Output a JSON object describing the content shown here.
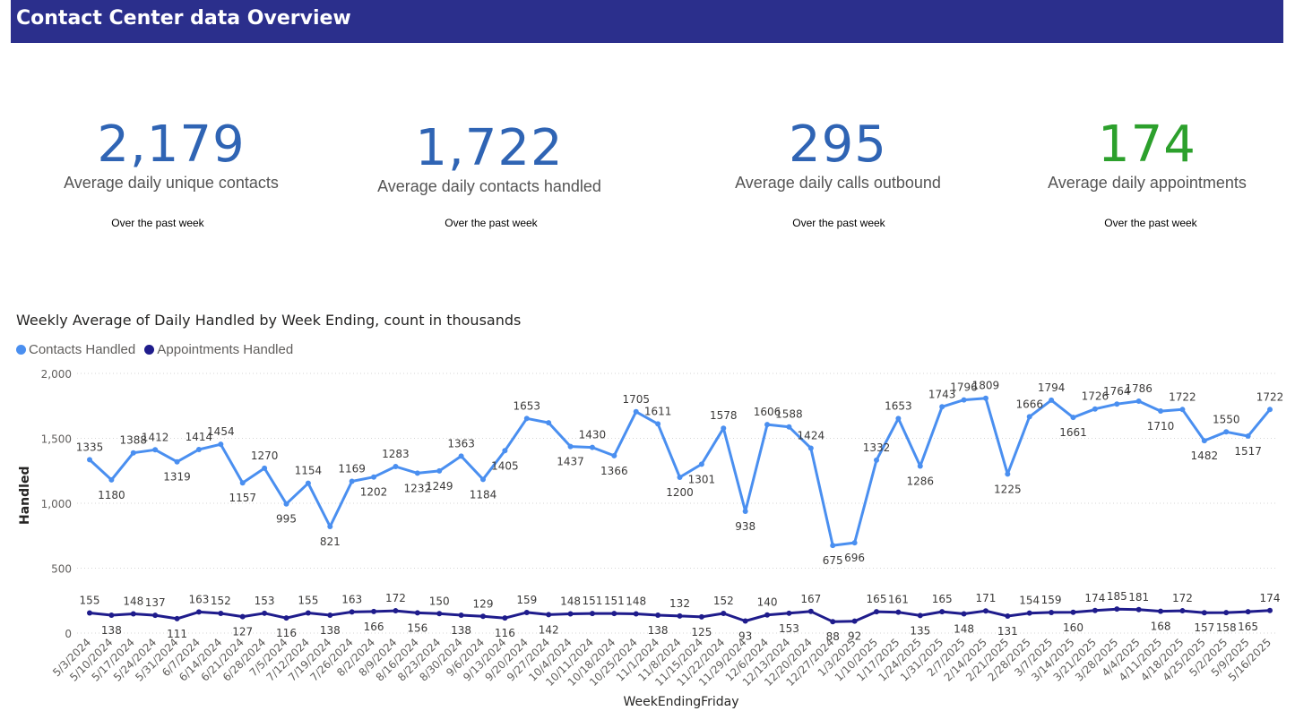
{
  "header": {
    "title": "Contact Center data Overview"
  },
  "kpis": [
    {
      "value": "2,179",
      "label": "Average daily unique contacts",
      "sub": "Over the past week",
      "color": "#2f64b4"
    },
    {
      "value": "1,722",
      "label": "Average daily contacts handled",
      "sub": "Over the past week",
      "color": "#2f64b4"
    },
    {
      "value": "295",
      "label": "Average daily calls outbound",
      "sub": "Over the past week",
      "color": "#2f64b4"
    },
    {
      "value": "174",
      "label": "Average daily appointments",
      "sub": "Over the past week",
      "color": "#2ca02c"
    }
  ],
  "chart_data": {
    "type": "line",
    "title": "Weekly Average of Daily Handled by Week Ending, count in thousands",
    "xlabel": "WeekEndingFriday",
    "ylabel": "Handled",
    "ylim": [
      0,
      2000
    ],
    "yticks": [
      "0",
      "500",
      "1,000",
      "1,500",
      "2,000"
    ],
    "grid": true,
    "legend_position": "top-left",
    "x": [
      "5/3/2024",
      "5/10/2024",
      "5/17/2024",
      "5/24/2024",
      "5/31/2024",
      "6/7/2024",
      "6/14/2024",
      "6/21/2024",
      "6/28/2024",
      "7/5/2024",
      "7/12/2024",
      "7/19/2024",
      "7/26/2024",
      "8/2/2024",
      "8/9/2024",
      "8/16/2024",
      "8/23/2024",
      "8/30/2024",
      "9/6/2024",
      "9/13/2024",
      "9/20/2024",
      "9/27/2024",
      "10/4/2024",
      "10/11/2024",
      "10/18/2024",
      "10/25/2024",
      "11/1/2024",
      "11/8/2024",
      "11/15/2024",
      "11/22/2024",
      "11/29/2024",
      "12/6/2024",
      "12/13/2024",
      "12/20/2024",
      "12/27/2024",
      "1/3/2025",
      "1/10/2025",
      "1/17/2025",
      "1/24/2025",
      "1/31/2025",
      "2/7/2025",
      "2/14/2025",
      "2/21/2025",
      "2/28/2025",
      "3/7/2025",
      "3/14/2025",
      "3/21/2025",
      "3/28/2025",
      "4/4/2025",
      "4/11/2025",
      "4/18/2025",
      "4/25/2025",
      "5/2/2025",
      "5/9/2025",
      "5/16/2025"
    ],
    "series": [
      {
        "name": "Contacts Handled",
        "color": "#4a8ff0",
        "values": [
          1335,
          1180,
          1388,
          1412,
          1319,
          1414,
          1454,
          1157,
          1270,
          995,
          1154,
          821,
          1169,
          1202,
          1283,
          1232,
          1249,
          1363,
          1184,
          1405,
          1653,
          1620,
          1437,
          1430,
          1366,
          1705,
          1611,
          1200,
          1301,
          1578,
          938,
          1606,
          1588,
          1424,
          675,
          696,
          1332,
          1653,
          1286,
          1743,
          1796,
          1809,
          1225,
          1666,
          1794,
          1661,
          1726,
          1764,
          1786,
          1710,
          1722,
          1482,
          1550,
          1517,
          1722
        ]
      },
      {
        "name": "Appointments Handled",
        "color": "#1f1c8c",
        "values": [
          155,
          138,
          148,
          137,
          111,
          163,
          152,
          127,
          153,
          116,
          155,
          138,
          163,
          166,
          172,
          156,
          150,
          138,
          129,
          116,
          159,
          142,
          148,
          151,
          151,
          148,
          138,
          132,
          125,
          152,
          93,
          140,
          153,
          167,
          88,
          92,
          165,
          161,
          135,
          165,
          148,
          171,
          131,
          154,
          159,
          160,
          174,
          185,
          181,
          168,
          172,
          157,
          158,
          165,
          174
        ]
      }
    ],
    "point_labels": [
      [
        "1335",
        "1180",
        "1388",
        "1412",
        "1319",
        "1414",
        "1454",
        "1157",
        "1270",
        "995",
        "1154",
        "821",
        "1169",
        "1202",
        "1283",
        "1232",
        "1249",
        "1363",
        "1184",
        "1405",
        "1653",
        "",
        "1437",
        "1430",
        "1366",
        "1705",
        "1611",
        "1200",
        "1301",
        "1578",
        "938",
        "1606",
        "1588",
        "1424",
        "675",
        "696",
        "1332",
        "1653",
        "1286",
        "1743",
        "1796",
        "1809",
        "1225",
        "1666",
        "1794",
        "1661",
        "1726",
        "1764",
        "1786",
        "1710",
        "1722",
        "1482",
        "1550",
        "1517",
        "1722"
      ],
      [
        "155",
        "138",
        "148",
        "137",
        "111",
        "163",
        "152",
        "127",
        "153",
        "116",
        "155",
        "138",
        "163",
        "166",
        "172",
        "156",
        "150",
        "138",
        "129",
        "116",
        "159",
        "142",
        "148",
        "151",
        "151",
        "148",
        "138",
        "132",
        "125",
        "152",
        "93",
        "140",
        "153",
        "167",
        "88",
        "92",
        "165",
        "161",
        "135",
        "165",
        "148",
        "171",
        "131",
        "154",
        "159",
        "160",
        "174",
        "185",
        "181",
        "168",
        "172",
        "157",
        "158",
        "165",
        "174"
      ]
    ]
  }
}
